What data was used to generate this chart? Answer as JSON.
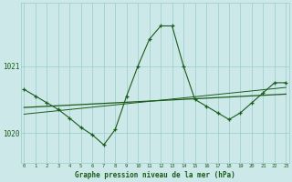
{
  "x": [
    0,
    1,
    2,
    3,
    4,
    5,
    6,
    7,
    8,
    9,
    10,
    11,
    12,
    13,
    14,
    15,
    16,
    17,
    18,
    19,
    20,
    21,
    22,
    23
  ],
  "y_main": [
    1020.65,
    1020.55,
    1020.45,
    1020.35,
    1020.22,
    1020.08,
    1019.97,
    1019.82,
    1020.05,
    1020.55,
    1021.0,
    1021.4,
    1021.6,
    1021.6,
    1021.0,
    1020.5,
    1020.4,
    1020.3,
    1020.2,
    1020.3,
    1020.45,
    1020.6,
    1020.75,
    1020.75
  ],
  "trend1_x": [
    0,
    23
  ],
  "trend1_y": [
    1020.38,
    1020.58
  ],
  "trend2_x": [
    0,
    23
  ],
  "trend2_y": [
    1020.28,
    1020.68
  ],
  "bg_color": "#cce8e8",
  "line_color": "#1a5c1a",
  "grid_color": "#99cccc",
  "axis_label_color": "#1a5c1a",
  "title": "Graphe pression niveau de la mer (hPa)",
  "yticks": [
    1020,
    1021
  ],
  "xticks": [
    0,
    1,
    2,
    3,
    4,
    5,
    6,
    7,
    8,
    9,
    10,
    11,
    12,
    13,
    14,
    15,
    16,
    17,
    18,
    19,
    20,
    21,
    22,
    23
  ],
  "xtick_labels": [
    "0",
    "1",
    "2",
    "3",
    "4",
    "5",
    "6",
    "7",
    "8",
    "9",
    "10",
    "11",
    "12",
    "13",
    "14",
    "15",
    "16",
    "17",
    "18",
    "19",
    "20",
    "21",
    "22",
    "23"
  ],
  "ylim": [
    1019.55,
    1021.95
  ],
  "xlim": [
    -0.3,
    23.3
  ]
}
